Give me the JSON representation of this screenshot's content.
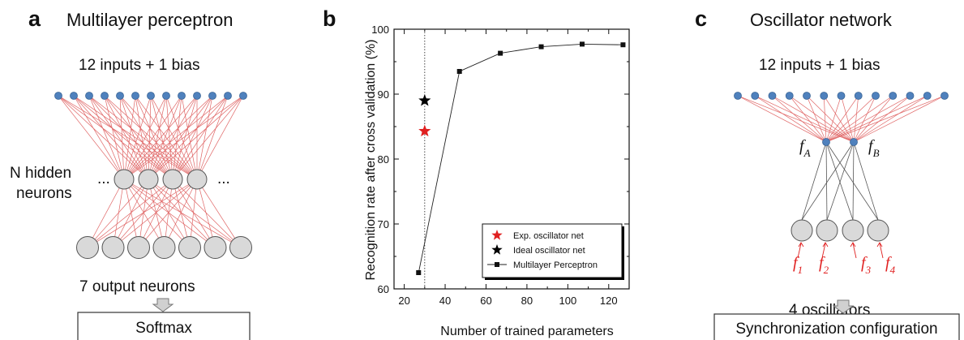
{
  "colors": {
    "input_node": "#4f81bd",
    "hidden_node": "#d9d9d9",
    "red_connection": "#e06666",
    "gray_connection": "#555555",
    "red_star": "#e02020",
    "black_star": "#000000"
  },
  "panel_a": {
    "letter": "a",
    "title": "Multilayer perceptron",
    "inputs_label": "12 inputs + 1 bias",
    "input_count": 13,
    "hidden_label_line1": "N hidden",
    "hidden_label_line2": "neurons",
    "hidden_count": 4,
    "ellipsis": "...",
    "output_count": 7,
    "outputs_label": "7 output neurons",
    "box_label": "Softmax"
  },
  "panel_b": {
    "letter": "b"
  },
  "panel_c": {
    "letter": "c",
    "title": "Oscillator network",
    "inputs_label": "12 inputs + 1 bias",
    "input_count": 13,
    "hidden_labels": [
      {
        "base": "f",
        "sub": "A"
      },
      {
        "base": "f",
        "sub": "B"
      }
    ],
    "oscillator_freqs": [
      {
        "base": "f",
        "sub": "1"
      },
      {
        "base": "f",
        "sub": "2"
      },
      {
        "base": "f",
        "sub": "3"
      },
      {
        "base": "f",
        "sub": "4"
      }
    ],
    "oscillators_label": "4 oscillators",
    "box_label": "Synchronization configuration"
  },
  "chart_data": {
    "type": "line",
    "title": "",
    "xlabel": "Number of trained parameters",
    "ylabel": "Recognition rate after cross validation (%)",
    "xlim": [
      15,
      130
    ],
    "ylim": [
      60,
      100
    ],
    "xticks": [
      20,
      40,
      60,
      80,
      100,
      120
    ],
    "yticks": [
      60,
      70,
      80,
      90,
      100
    ],
    "vline_x": 30,
    "series": [
      {
        "name": "Multilayer Perceptron",
        "kind": "line-square",
        "x": [
          27,
          47,
          67,
          87,
          107,
          127
        ],
        "y": [
          62.5,
          93.5,
          96.3,
          97.3,
          97.7,
          97.6
        ]
      },
      {
        "name": "Exp. oscillator net",
        "kind": "star",
        "color": "#e02020",
        "x": [
          30
        ],
        "y": [
          84.3
        ]
      },
      {
        "name": "Ideal oscillator net",
        "kind": "star",
        "color": "#000000",
        "x": [
          30
        ],
        "y": [
          89
        ]
      }
    ],
    "legend_order": [
      "Exp. oscillator net",
      "Ideal oscillator net",
      "Multilayer Perceptron"
    ],
    "legend_position": "bottom-right",
    "grid": false
  }
}
